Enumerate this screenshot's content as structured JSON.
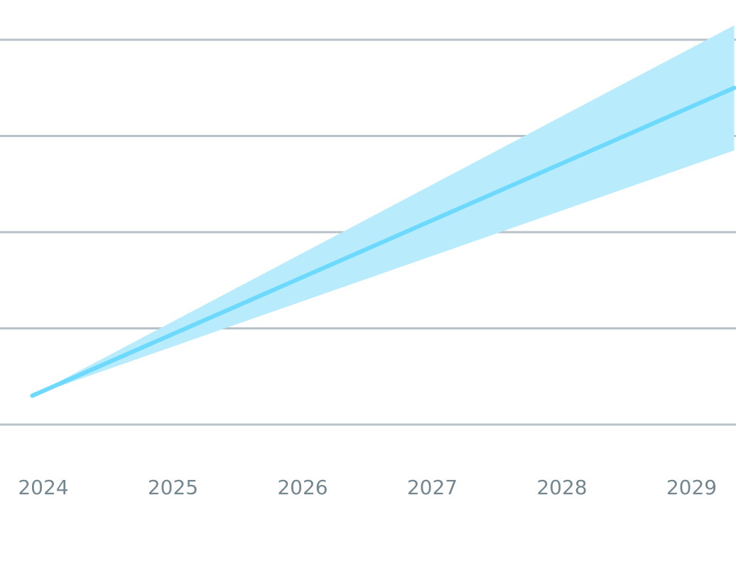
{
  "chart_data": {
    "type": "area",
    "x_tick_labels": [
      "2024",
      "2025",
      "2026",
      "2027",
      "2028",
      "2029"
    ],
    "y_gridlines": [
      0,
      1,
      2,
      3,
      4
    ],
    "ylim": [
      0,
      4
    ],
    "grid": true,
    "legend": "none",
    "series": [
      {
        "x": [
          "2023-12-01",
          "2029-05-01"
        ],
        "y": [
          0.3,
          3.5
        ],
        "band_lower": [
          0.3,
          2.85
        ],
        "band_upper": [
          0.3,
          4.15
        ]
      }
    ],
    "colors": {
      "line": "#6dd9fd",
      "band": "#b8ecfd",
      "grid": "#b7c2c8",
      "tick_label": "#748791"
    }
  }
}
